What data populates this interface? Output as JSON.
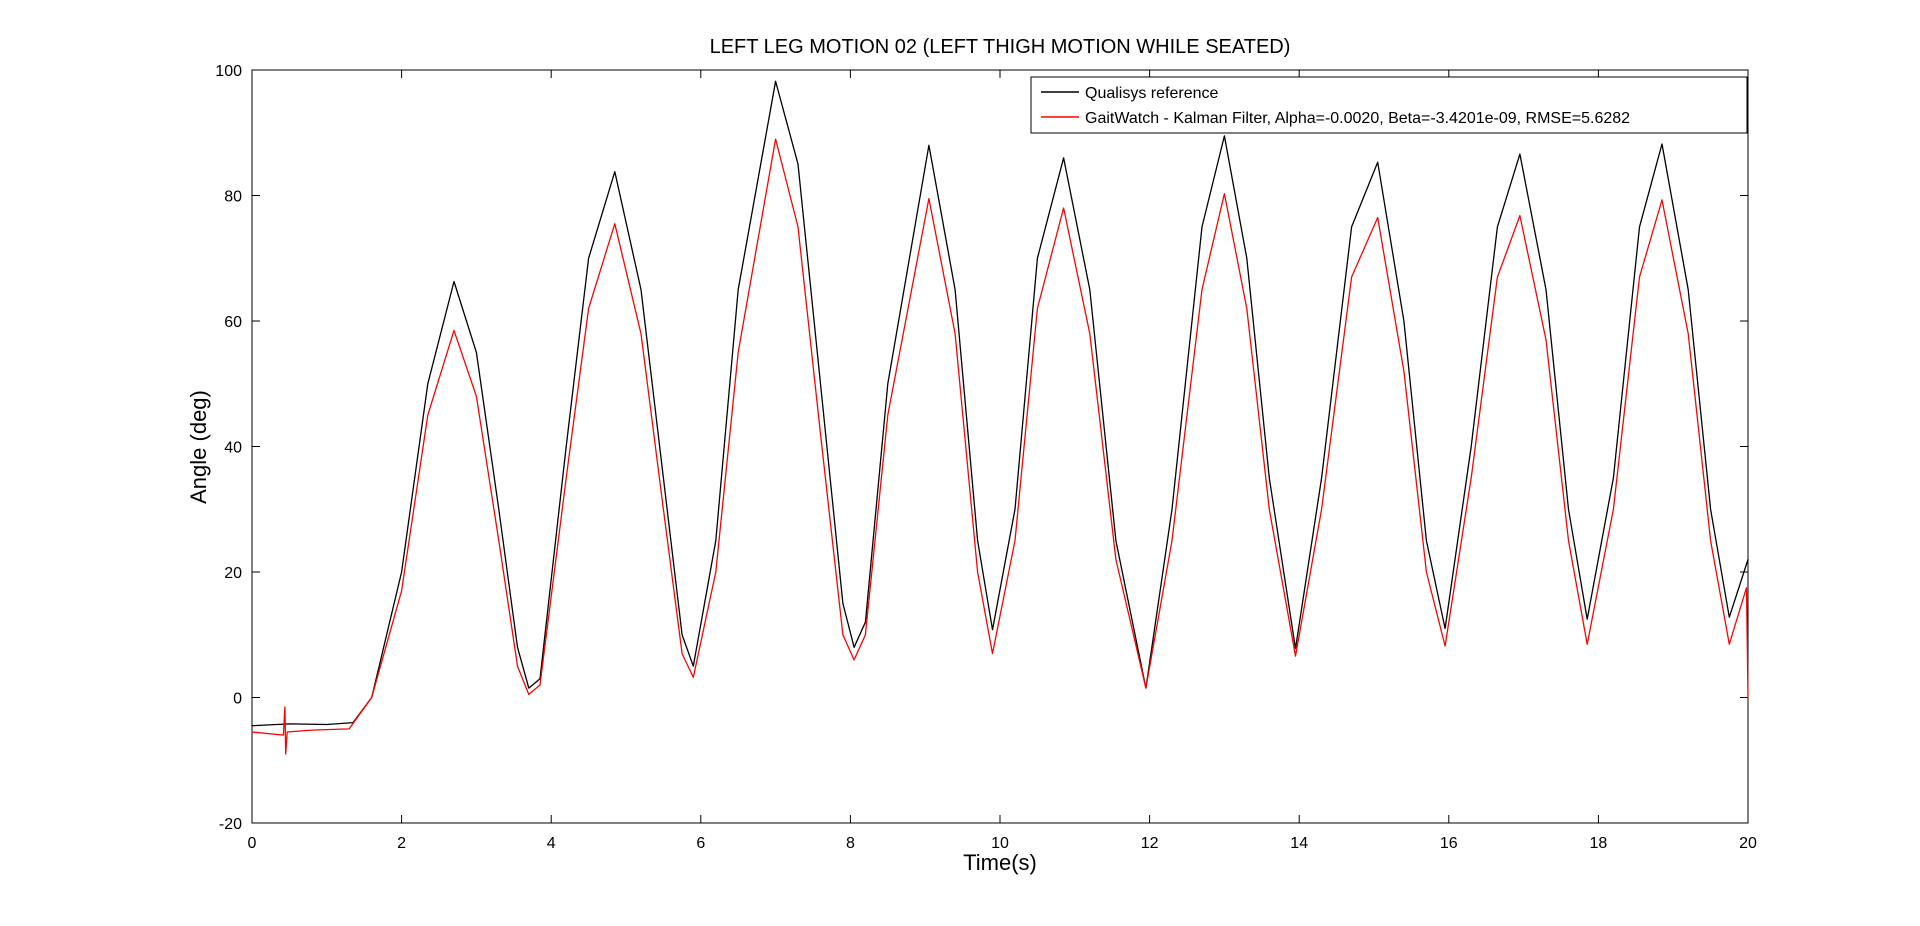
{
  "chart_data": {
    "type": "line",
    "title": "LEFT LEG MOTION 02 (LEFT THIGH MOTION WHILE SEATED)",
    "xlabel": "Time(s)",
    "ylabel": "Angle (deg)",
    "xlim": [
      0,
      20
    ],
    "ylim": [
      -20,
      100
    ],
    "xticks": [
      0,
      2,
      4,
      6,
      8,
      10,
      12,
      14,
      16,
      18,
      20
    ],
    "yticks": [
      -20,
      0,
      20,
      40,
      60,
      80,
      100
    ],
    "grid": false,
    "legend_position": "top-right",
    "series": [
      {
        "name": "Qualisys reference",
        "color": "#000000",
        "points": [
          [
            0.0,
            -4.5
          ],
          [
            0.5,
            -4.2
          ],
          [
            1.0,
            -4.3
          ],
          [
            1.35,
            -4.0
          ],
          [
            1.6,
            0.0
          ],
          [
            2.0,
            20.0
          ],
          [
            2.35,
            50.0
          ],
          [
            2.7,
            66.3
          ],
          [
            3.0,
            55.0
          ],
          [
            3.3,
            30.0
          ],
          [
            3.55,
            8.0
          ],
          [
            3.7,
            1.5
          ],
          [
            3.85,
            3.0
          ],
          [
            4.2,
            40.0
          ],
          [
            4.5,
            70.0
          ],
          [
            4.85,
            83.8
          ],
          [
            5.2,
            65.0
          ],
          [
            5.5,
            35.0
          ],
          [
            5.75,
            10.0
          ],
          [
            5.9,
            5.0
          ],
          [
            6.2,
            25.0
          ],
          [
            6.5,
            65.0
          ],
          [
            7.0,
            98.2
          ],
          [
            7.3,
            85.0
          ],
          [
            7.6,
            50.0
          ],
          [
            7.9,
            15.0
          ],
          [
            8.05,
            8.0
          ],
          [
            8.2,
            12.0
          ],
          [
            8.5,
            50.0
          ],
          [
            9.05,
            88.0
          ],
          [
            9.4,
            65.0
          ],
          [
            9.7,
            25.0
          ],
          [
            9.9,
            10.8
          ],
          [
            10.2,
            30.0
          ],
          [
            10.5,
            70.0
          ],
          [
            10.85,
            86.0
          ],
          [
            11.2,
            65.0
          ],
          [
            11.55,
            25.0
          ],
          [
            11.95,
            1.5
          ],
          [
            12.3,
            30.0
          ],
          [
            12.7,
            75.0
          ],
          [
            13.0,
            89.5
          ],
          [
            13.3,
            70.0
          ],
          [
            13.6,
            35.0
          ],
          [
            13.95,
            7.8
          ],
          [
            14.3,
            35.0
          ],
          [
            14.7,
            75.0
          ],
          [
            15.05,
            85.3
          ],
          [
            15.4,
            60.0
          ],
          [
            15.7,
            25.0
          ],
          [
            15.95,
            11.0
          ],
          [
            16.3,
            40.0
          ],
          [
            16.65,
            75.0
          ],
          [
            16.95,
            86.6
          ],
          [
            17.3,
            65.0
          ],
          [
            17.6,
            30.0
          ],
          [
            17.85,
            12.5
          ],
          [
            18.2,
            35.0
          ],
          [
            18.55,
            75.0
          ],
          [
            18.85,
            88.2
          ],
          [
            19.2,
            65.0
          ],
          [
            19.5,
            30.0
          ],
          [
            19.75,
            12.8
          ],
          [
            20.0,
            22.0
          ]
        ]
      },
      {
        "name": "GaitWatch - Kalman Filter, Alpha=-0.0020, Beta=-3.4201e-09, RMSE=5.6282",
        "color": "#ff0000",
        "points": [
          [
            0.0,
            -5.5
          ],
          [
            0.42,
            -6.0
          ],
          [
            0.44,
            -1.5
          ],
          [
            0.45,
            -9.0
          ],
          [
            0.47,
            -5.5
          ],
          [
            0.8,
            -5.2
          ],
          [
            1.3,
            -5.0
          ],
          [
            1.6,
            0.0
          ],
          [
            2.0,
            17.0
          ],
          [
            2.35,
            45.0
          ],
          [
            2.7,
            58.5
          ],
          [
            3.0,
            48.0
          ],
          [
            3.3,
            25.0
          ],
          [
            3.55,
            5.0
          ],
          [
            3.7,
            0.5
          ],
          [
            3.85,
            2.0
          ],
          [
            4.2,
            35.0
          ],
          [
            4.5,
            62.0
          ],
          [
            4.85,
            75.5
          ],
          [
            5.2,
            58.0
          ],
          [
            5.5,
            30.0
          ],
          [
            5.75,
            7.0
          ],
          [
            5.9,
            3.2
          ],
          [
            6.2,
            20.0
          ],
          [
            6.5,
            55.0
          ],
          [
            7.0,
            89.0
          ],
          [
            7.3,
            75.0
          ],
          [
            7.6,
            42.0
          ],
          [
            7.9,
            10.0
          ],
          [
            8.05,
            6.0
          ],
          [
            8.2,
            10.0
          ],
          [
            8.5,
            45.0
          ],
          [
            9.05,
            79.5
          ],
          [
            9.4,
            58.0
          ],
          [
            9.7,
            20.0
          ],
          [
            9.9,
            7.0
          ],
          [
            10.2,
            25.0
          ],
          [
            10.5,
            62.0
          ],
          [
            10.85,
            78.0
          ],
          [
            11.2,
            58.0
          ],
          [
            11.55,
            22.0
          ],
          [
            11.95,
            1.5
          ],
          [
            12.3,
            25.0
          ],
          [
            12.7,
            65.0
          ],
          [
            13.0,
            80.3
          ],
          [
            13.3,
            62.0
          ],
          [
            13.6,
            30.0
          ],
          [
            13.95,
            6.6
          ],
          [
            14.3,
            30.0
          ],
          [
            14.7,
            67.0
          ],
          [
            15.05,
            76.5
          ],
          [
            15.4,
            52.0
          ],
          [
            15.7,
            20.0
          ],
          [
            15.95,
            8.2
          ],
          [
            16.3,
            35.0
          ],
          [
            16.65,
            67.0
          ],
          [
            16.95,
            76.8
          ],
          [
            17.3,
            57.0
          ],
          [
            17.6,
            25.0
          ],
          [
            17.85,
            8.5
          ],
          [
            18.2,
            30.0
          ],
          [
            18.55,
            67.0
          ],
          [
            18.85,
            79.3
          ],
          [
            19.2,
            58.0
          ],
          [
            19.5,
            25.0
          ],
          [
            19.75,
            8.5
          ],
          [
            19.98,
            17.5
          ],
          [
            20.0,
            0.0
          ]
        ]
      }
    ]
  }
}
